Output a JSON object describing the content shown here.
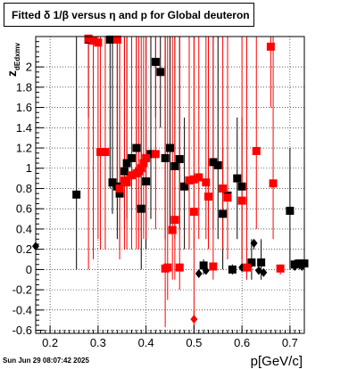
{
  "title": "Fitted δ 1/β versus η and p for Global deuteron",
  "timestamp": "Sun Jun 29 08:07:42 2025",
  "chart_data": {
    "type": "scatter",
    "title": "Fitted δ 1/β versus η and p for Global deuteron",
    "xlabel": "p[GeV/c]",
    "ylabel": "z",
    "ylabel_subscript": "dEdxmv",
    "xlim": [
      0.17,
      0.73
    ],
    "ylim": [
      -0.63,
      2.3
    ],
    "xticks": [
      0.2,
      0.3,
      0.4,
      0.5,
      0.6,
      0.7
    ],
    "xtick_labels": [
      "0.2",
      "0.3",
      "0.4",
      "0.5",
      "0.6",
      "0.7"
    ],
    "yticks": [
      -0.6,
      -0.4,
      -0.2,
      0,
      0.2,
      0.4,
      0.6,
      0.8,
      1,
      1.2,
      1.4,
      1.6,
      1.8,
      2
    ],
    "ytick_labels": [
      "-0.6",
      "-0.4",
      "-0.2",
      "0",
      "0.2",
      "0.4",
      "0.6",
      "0.8",
      "1",
      "1.2",
      "1.4",
      "1.6",
      "1.8",
      "2"
    ],
    "grid": true,
    "colors": {
      "black": "#000000",
      "red": "#ff0000"
    },
    "series": [
      {
        "color": "black",
        "marker": "square",
        "points": [
          {
            "x": 0.255,
            "y": 0.74,
            "lo": 0.0,
            "hi": 2.3
          },
          {
            "x": 0.28,
            "y": 2.27,
            "lo": 1.5,
            "hi": 2.3
          },
          {
            "x": 0.325,
            "y": 2.27,
            "lo": 0.8,
            "hi": 2.3
          },
          {
            "x": 0.33,
            "y": 0.86,
            "lo": 0.55,
            "hi": 2.3
          },
          {
            "x": 0.34,
            "y": 0.82,
            "lo": 0.3,
            "hi": 2.3
          },
          {
            "x": 0.345,
            "y": 0.75,
            "lo": 0.2,
            "hi": 2.3
          },
          {
            "x": 0.355,
            "y": 0.97,
            "lo": 0.4,
            "hi": 2.3
          },
          {
            "x": 0.36,
            "y": 1.05,
            "lo": 0.5,
            "hi": 2.3
          },
          {
            "x": 0.37,
            "y": 1.1,
            "lo": 0.6,
            "hi": 2.3
          },
          {
            "x": 0.38,
            "y": 1.2,
            "lo": 0.6,
            "hi": 2.3
          },
          {
            "x": 0.39,
            "y": 0.6,
            "lo": 0.0,
            "hi": 1.6
          },
          {
            "x": 0.4,
            "y": 0.87,
            "lo": 0.2,
            "hi": 2.3
          },
          {
            "x": 0.41,
            "y": 1.14,
            "lo": 0.5,
            "hi": 2.3
          },
          {
            "x": 0.42,
            "y": 2.05,
            "lo": 1.5,
            "hi": 2.3
          },
          {
            "x": 0.43,
            "y": 1.95,
            "lo": 1.4,
            "hi": 2.3
          },
          {
            "x": 0.44,
            "y": 1.1,
            "lo": 0.3,
            "hi": 2.3
          },
          {
            "x": 0.45,
            "y": 1.2,
            "lo": 0.4,
            "hi": 2.3
          },
          {
            "x": 0.46,
            "y": 1.02,
            "lo": 0.3,
            "hi": 2.3
          },
          {
            "x": 0.47,
            "y": 1.09,
            "lo": 0.4,
            "hi": 2.3
          },
          {
            "x": 0.48,
            "y": 0.82,
            "lo": 0.2,
            "hi": 1.5
          },
          {
            "x": 0.52,
            "y": 0.04,
            "lo": -0.05,
            "hi": 0.1
          },
          {
            "x": 0.54,
            "y": 1.06,
            "lo": 0.4,
            "hi": 2.3
          },
          {
            "x": 0.55,
            "y": 1.03,
            "lo": 0.3,
            "hi": 2.3
          },
          {
            "x": 0.56,
            "y": 0.55,
            "lo": 0.0,
            "hi": 1.2
          },
          {
            "x": 0.57,
            "y": 0.73,
            "lo": 0.1,
            "hi": 1.4
          },
          {
            "x": 0.58,
            "y": 0.0,
            "lo": -0.05,
            "hi": 0.05
          },
          {
            "x": 0.59,
            "y": 0.9,
            "lo": 0.3,
            "hi": 1.5
          },
          {
            "x": 0.6,
            "y": 0.82,
            "lo": 0.1,
            "hi": 1.5
          },
          {
            "x": 0.62,
            "y": 0.07,
            "lo": -0.1,
            "hi": 0.3
          },
          {
            "x": 0.64,
            "y": 0.07,
            "lo": -0.1,
            "hi": 0.3
          },
          {
            "x": 0.7,
            "y": 0.58,
            "lo": 0.0,
            "hi": 1.2
          },
          {
            "x": 0.71,
            "y": 0.05,
            "lo": 0.0,
            "hi": 0.1
          },
          {
            "x": 0.72,
            "y": 0.06,
            "lo": 0.0,
            "hi": 0.1
          },
          {
            "x": 0.73,
            "y": 0.06,
            "lo": 0.0,
            "hi": 0.1
          }
        ]
      },
      {
        "color": "black",
        "marker": "diamond",
        "points": [
          {
            "x": 0.17,
            "y": 0.23,
            "lo": 0.23,
            "hi": 0.23
          },
          {
            "x": 0.51,
            "y": -0.04,
            "lo": -0.04,
            "hi": -0.04
          },
          {
            "x": 0.525,
            "y": -0.01,
            "lo": -0.01,
            "hi": -0.01
          },
          {
            "x": 0.6,
            "y": 0.02,
            "lo": 0.02,
            "hi": 0.02
          },
          {
            "x": 0.625,
            "y": 0.26,
            "lo": 0.2,
            "hi": 0.3
          },
          {
            "x": 0.635,
            "y": -0.01,
            "lo": -0.01,
            "hi": -0.01
          },
          {
            "x": 0.645,
            "y": -0.03,
            "lo": -0.03,
            "hi": -0.03
          },
          {
            "x": 0.71,
            "y": 0.03,
            "lo": 0.03,
            "hi": 0.03
          },
          {
            "x": 0.725,
            "y": 0.03,
            "lo": 0.03,
            "hi": 0.03
          }
        ]
      },
      {
        "color": "red",
        "marker": "square",
        "points": [
          {
            "x": 0.28,
            "y": 2.28,
            "lo": 0.0,
            "hi": 2.3
          },
          {
            "x": 0.29,
            "y": 2.26,
            "lo": 0.1,
            "hi": 2.3
          },
          {
            "x": 0.3,
            "y": 2.24,
            "lo": 0.3,
            "hi": 2.3
          },
          {
            "x": 0.305,
            "y": 1.16,
            "lo": 0.2,
            "hi": 2.3
          },
          {
            "x": 0.315,
            "y": 1.16,
            "lo": 0.2,
            "hi": 2.3
          },
          {
            "x": 0.34,
            "y": 2.27,
            "lo": 0.7,
            "hi": 2.3
          },
          {
            "x": 0.345,
            "y": 0.8,
            "lo": 0.1,
            "hi": 2.3
          },
          {
            "x": 0.355,
            "y": 0.88,
            "lo": 0.2,
            "hi": 2.3
          },
          {
            "x": 0.36,
            "y": 0.86,
            "lo": 0.2,
            "hi": 2.3
          },
          {
            "x": 0.37,
            "y": 0.93,
            "lo": 0.2,
            "hi": 2.3
          },
          {
            "x": 0.38,
            "y": 0.95,
            "lo": 0.2,
            "hi": 2.3
          },
          {
            "x": 0.385,
            "y": 0.97,
            "lo": 0.2,
            "hi": 2.3
          },
          {
            "x": 0.39,
            "y": 1.0,
            "lo": 0.3,
            "hi": 2.3
          },
          {
            "x": 0.395,
            "y": 1.05,
            "lo": 0.3,
            "hi": 2.3
          },
          {
            "x": 0.4,
            "y": 1.1,
            "lo": 0.3,
            "hi": 2.3
          },
          {
            "x": 0.42,
            "y": 1.14,
            "lo": 0.4,
            "hi": 2.3
          },
          {
            "x": 0.44,
            "y": 0.01,
            "lo": -0.57,
            "hi": 2.3
          },
          {
            "x": 0.445,
            "y": 0.02,
            "lo": -0.3,
            "hi": 2.3
          },
          {
            "x": 0.455,
            "y": 0.39,
            "lo": -0.1,
            "hi": 2.3
          },
          {
            "x": 0.46,
            "y": 0.49,
            "lo": -0.1,
            "hi": 2.3
          },
          {
            "x": 0.47,
            "y": 0.02,
            "lo": -0.2,
            "hi": 2.3
          },
          {
            "x": 0.49,
            "y": 0.88,
            "lo": 0.2,
            "hi": 2.3
          },
          {
            "x": 0.5,
            "y": 0.89,
            "lo": 0.2,
            "hi": 2.3
          },
          {
            "x": 0.5,
            "y": 0.57,
            "lo": -0.6,
            "hi": 2.3
          },
          {
            "x": 0.51,
            "y": 0.91,
            "lo": 0.3,
            "hi": 2.3
          },
          {
            "x": 0.525,
            "y": 0.86,
            "lo": 0.3,
            "hi": 2.3
          },
          {
            "x": 0.53,
            "y": 0.72,
            "lo": 0.2,
            "hi": 2.3
          },
          {
            "x": 0.54,
            "y": 0.03,
            "lo": -0.1,
            "hi": 2.3
          },
          {
            "x": 0.56,
            "y": 0.8,
            "lo": 0.2,
            "hi": 2.3
          },
          {
            "x": 0.57,
            "y": 0.71,
            "lo": 0.1,
            "hi": 2.3
          },
          {
            "x": 0.6,
            "y": 0.68,
            "lo": 0.0,
            "hi": 2.3
          },
          {
            "x": 0.61,
            "y": 0.02,
            "lo": -0.1,
            "hi": 2.3
          },
          {
            "x": 0.63,
            "y": 1.17,
            "lo": 0.4,
            "hi": 2.3
          },
          {
            "x": 0.66,
            "y": 2.2,
            "lo": 1.6,
            "hi": 2.3
          },
          {
            "x": 0.665,
            "y": 0.85,
            "lo": 0.3,
            "hi": 2.3
          },
          {
            "x": 0.68,
            "y": 0.01,
            "lo": -0.05,
            "hi": 0.05
          }
        ]
      },
      {
        "color": "red",
        "marker": "diamond",
        "points": [
          {
            "x": 0.5,
            "y": -0.49,
            "lo": -0.6,
            "hi": -0.4
          }
        ]
      }
    ]
  }
}
